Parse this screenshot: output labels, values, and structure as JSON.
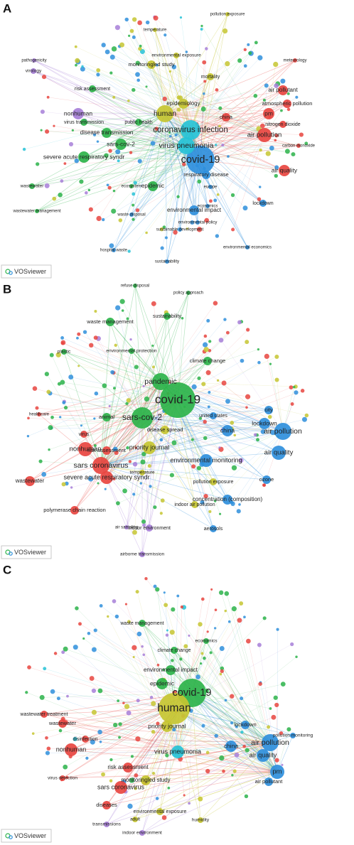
{
  "panels": [
    {
      "label": "A",
      "logo": "VOSviewer",
      "nodes": [
        {
          "label": "human",
          "color": "#c6c531"
        },
        {
          "label": "coronavirus infection",
          "color": "#26c2d6"
        },
        {
          "label": "covid-19",
          "color": "#2f8fdc"
        },
        {
          "label": "virus pneumonia",
          "color": "#26c2d6"
        },
        {
          "label": "sars-cov-2",
          "color": "#2cb34a"
        },
        {
          "label": "severe acute respiratory syndr",
          "color": "#2cb34a"
        },
        {
          "label": "disease transmission",
          "color": "#2cb34a"
        },
        {
          "label": "nonhuman",
          "color": "#a77fd8"
        },
        {
          "label": "virus transmission",
          "color": "#2cb34a"
        },
        {
          "label": "air pollution",
          "color": "#e84540"
        },
        {
          "label": "pm",
          "color": "#e84540"
        },
        {
          "label": "air pollutant",
          "color": "#e84540"
        },
        {
          "label": "atmospheric pollution",
          "color": "#e84540"
        },
        {
          "label": "air quality",
          "color": "#e84540"
        },
        {
          "label": "lockdown",
          "color": "#2f8fdc"
        },
        {
          "label": "epidemic",
          "color": "#2cb34a"
        },
        {
          "label": "environmental impact",
          "color": "#2f8fdc"
        },
        {
          "label": "respiratory disease",
          "color": "#2f8fdc"
        },
        {
          "label": "china",
          "color": "#e84540"
        },
        {
          "label": "epidemiology",
          "color": "#c6c531"
        },
        {
          "label": "mortality",
          "color": "#c6c531"
        },
        {
          "label": "risk assessment",
          "color": "#2cb34a"
        },
        {
          "label": "monitoringled study",
          "color": "#c6c531"
        },
        {
          "label": "environmental exposure",
          "color": "#c6c531"
        },
        {
          "label": "temperature",
          "color": "#c6c531"
        },
        {
          "label": "public health",
          "color": "#2cb34a"
        },
        {
          "label": "wastewater",
          "color": "#2cb34a"
        },
        {
          "label": "wastewater management",
          "color": "#2cb34a"
        },
        {
          "label": "nitrogen dioxide",
          "color": "#e84540"
        },
        {
          "label": "carbon monoxide",
          "color": "#e84540"
        },
        {
          "label": "sustainable development",
          "color": "#2f8fdc"
        },
        {
          "label": "environmental policy",
          "color": "#2f8fdc"
        },
        {
          "label": "virology",
          "color": "#a77fd8"
        },
        {
          "label": "pathogenicity",
          "color": "#a77fd8"
        },
        {
          "label": "europe",
          "color": "#2f8fdc"
        },
        {
          "label": "economics",
          "color": "#2f8fdc"
        },
        {
          "label": "waste disposal",
          "color": "#2f8fdc"
        },
        {
          "label": "hospital waste",
          "color": "#2f8fdc"
        },
        {
          "label": "sustainability",
          "color": "#2f8fdc"
        },
        {
          "label": "pollution exposure",
          "color": "#c6c531"
        },
        {
          "label": "meteorology",
          "color": "#e84540"
        },
        {
          "label": "ecosystem",
          "color": "#2cb34a"
        },
        {
          "label": "environmental economics",
          "color": "#2f8fdc"
        }
      ]
    },
    {
      "label": "B",
      "logo": "VOSviewer",
      "nodes": [
        {
          "label": "covid-19",
          "color": "#2cb34a"
        },
        {
          "label": "pandemic",
          "color": "#2cb34a"
        },
        {
          "label": "sars-cov-2",
          "color": "#2cb34a"
        },
        {
          "label": "nonhuman",
          "color": "#e84540"
        },
        {
          "label": "severe acute respiratory syndr",
          "color": "#e84540"
        },
        {
          "label": "sars coronavirus",
          "color": "#e84540"
        },
        {
          "label": "risk assessment",
          "color": "#e84540"
        },
        {
          "label": "priority journal",
          "color": "#c6c531"
        },
        {
          "label": "environmental monitoring",
          "color": "#2f8fdc"
        },
        {
          "label": "air pollution",
          "color": "#2f8fdc"
        },
        {
          "label": "air quality",
          "color": "#2f8fdc"
        },
        {
          "label": "lockdown",
          "color": "#2f8fdc"
        },
        {
          "label": "china",
          "color": "#2f8fdc"
        },
        {
          "label": "city",
          "color": "#2f8fdc"
        },
        {
          "label": "waste management",
          "color": "#2cb34a"
        },
        {
          "label": "sustainability",
          "color": "#2cb34a"
        },
        {
          "label": "climate change",
          "color": "#2cb34a"
        },
        {
          "label": "disease spread",
          "color": "#c6c531"
        },
        {
          "label": "indoor air pollution",
          "color": "#c6c531"
        },
        {
          "label": "aerosols",
          "color": "#2f8fdc"
        },
        {
          "label": "airborne transmission",
          "color": "#a77fd8"
        },
        {
          "label": "indoor environment",
          "color": "#a77fd8"
        },
        {
          "label": "polymerase chain reaction",
          "color": "#e84540"
        },
        {
          "label": "wastewater",
          "color": "#e84540"
        },
        {
          "label": "animal",
          "color": "#2cb34a"
        },
        {
          "label": "virus",
          "color": "#e84540"
        },
        {
          "label": "concentration (composition)",
          "color": "#2f8fdc"
        },
        {
          "label": "temperature",
          "color": "#c6c531"
        },
        {
          "label": "pollution exposure",
          "color": "#c6c531"
        },
        {
          "label": "united states",
          "color": "#2f8fdc"
        },
        {
          "label": "ozone",
          "color": "#2f8fdc"
        },
        {
          "label": "environmental protection",
          "color": "#2cb34a"
        },
        {
          "label": "plastic",
          "color": "#2cb34a"
        },
        {
          "label": "healthcare",
          "color": "#e84540"
        },
        {
          "label": "air sampling",
          "color": "#a77fd8"
        },
        {
          "label": "refuse disposal",
          "color": "#2cb34a"
        },
        {
          "label": "policy approach",
          "color": "#2cb34a"
        }
      ]
    },
    {
      "label": "C",
      "logo": "VOSviewer",
      "nodes": [
        {
          "label": "covid-19",
          "color": "#2cb34a"
        },
        {
          "label": "human",
          "color": "#c6c531"
        },
        {
          "label": "priority journal",
          "color": "#c6c531"
        },
        {
          "label": "virus pneumonia",
          "color": "#26c2d6"
        },
        {
          "label": "epidemic",
          "color": "#2cb34a"
        },
        {
          "label": "nonhuman",
          "color": "#e84540"
        },
        {
          "label": "sars coronavirus",
          "color": "#e84540"
        },
        {
          "label": "diseases",
          "color": "#e84540"
        },
        {
          "label": "risk assessment",
          "color": "#e84540"
        },
        {
          "label": "monitoringled study",
          "color": "#c6c531"
        },
        {
          "label": "air pollution",
          "color": "#2f8fdc"
        },
        {
          "label": "air quality",
          "color": "#2f8fdc"
        },
        {
          "label": "pm",
          "color": "#2f8fdc"
        },
        {
          "label": "china",
          "color": "#2f8fdc"
        },
        {
          "label": "lockdown",
          "color": "#2f8fdc"
        },
        {
          "label": "air pollutant",
          "color": "#2f8fdc"
        },
        {
          "label": "wastewater",
          "color": "#e84540"
        },
        {
          "label": "wastewater treatment",
          "color": "#e84540"
        },
        {
          "label": "transmissions",
          "color": "#a77fd8"
        },
        {
          "label": "environmental impact",
          "color": "#2cb34a"
        },
        {
          "label": "climate change",
          "color": "#2cb34a"
        },
        {
          "label": "waste management",
          "color": "#2cb34a"
        },
        {
          "label": "environmental exposure",
          "color": "#c6c531"
        },
        {
          "label": "indoor environment",
          "color": "#a77fd8"
        },
        {
          "label": "adult",
          "color": "#c6c531"
        },
        {
          "label": "humidity",
          "color": "#c6c531"
        },
        {
          "label": "disinfection",
          "color": "#e84540"
        },
        {
          "label": "virus detection",
          "color": "#e84540"
        },
        {
          "label": "economics",
          "color": "#2cb34a"
        },
        {
          "label": "pollution monitoring",
          "color": "#2f8fdc"
        }
      ]
    }
  ]
}
